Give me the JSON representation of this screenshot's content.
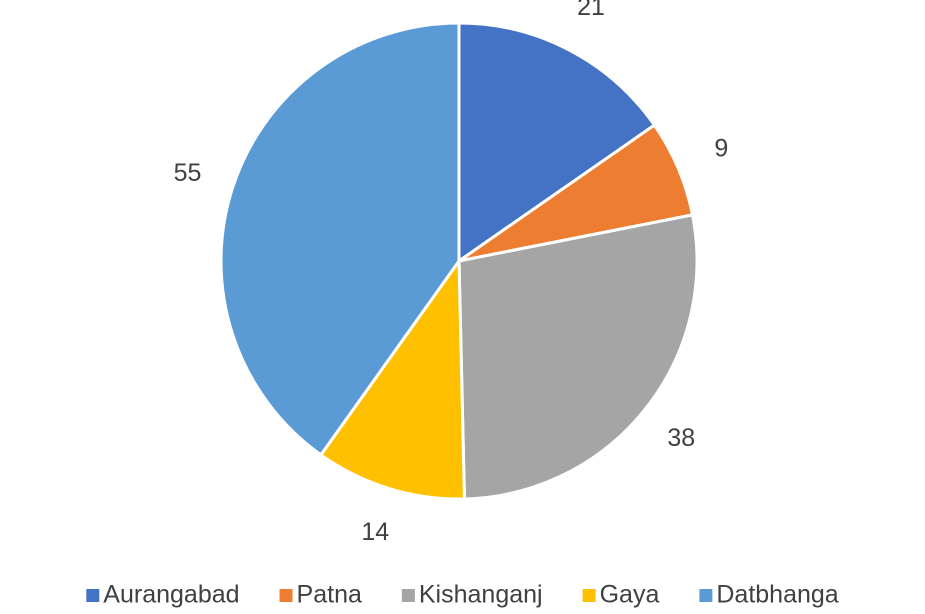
{
  "chart_data": {
    "type": "pie",
    "categories": [
      "Aurangabad",
      "Patna",
      "Kishanganj",
      "Gaya",
      "Datbhanga"
    ],
    "values": [
      21,
      9,
      38,
      14,
      55
    ],
    "colors": [
      "#4472c4",
      "#ed7d31",
      "#a5a5a5",
      "#ffc000",
      "#5b9bd5"
    ],
    "legend": "bottom"
  }
}
